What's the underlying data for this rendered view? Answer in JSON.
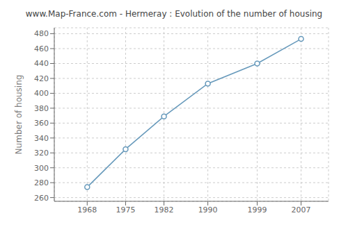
{
  "chart_data": {
    "type": "line",
    "title": "www.Map-France.com - Hermeray : Evolution of the number of housing",
    "ylabel": "Number of housing",
    "x": [
      1968,
      1975,
      1982,
      1990,
      1999,
      2007
    ],
    "values": [
      274,
      325,
      369,
      413,
      440,
      473
    ],
    "ylim": [
      255,
      488
    ],
    "xlim": [
      1962,
      2012
    ],
    "yticks": [
      260,
      280,
      300,
      320,
      340,
      360,
      380,
      400,
      420,
      440,
      460,
      480
    ],
    "xticks": [
      1968,
      1975,
      1982,
      1990,
      1999,
      2007
    ],
    "color": "#6699bb",
    "marker": "circle",
    "grid": true
  }
}
